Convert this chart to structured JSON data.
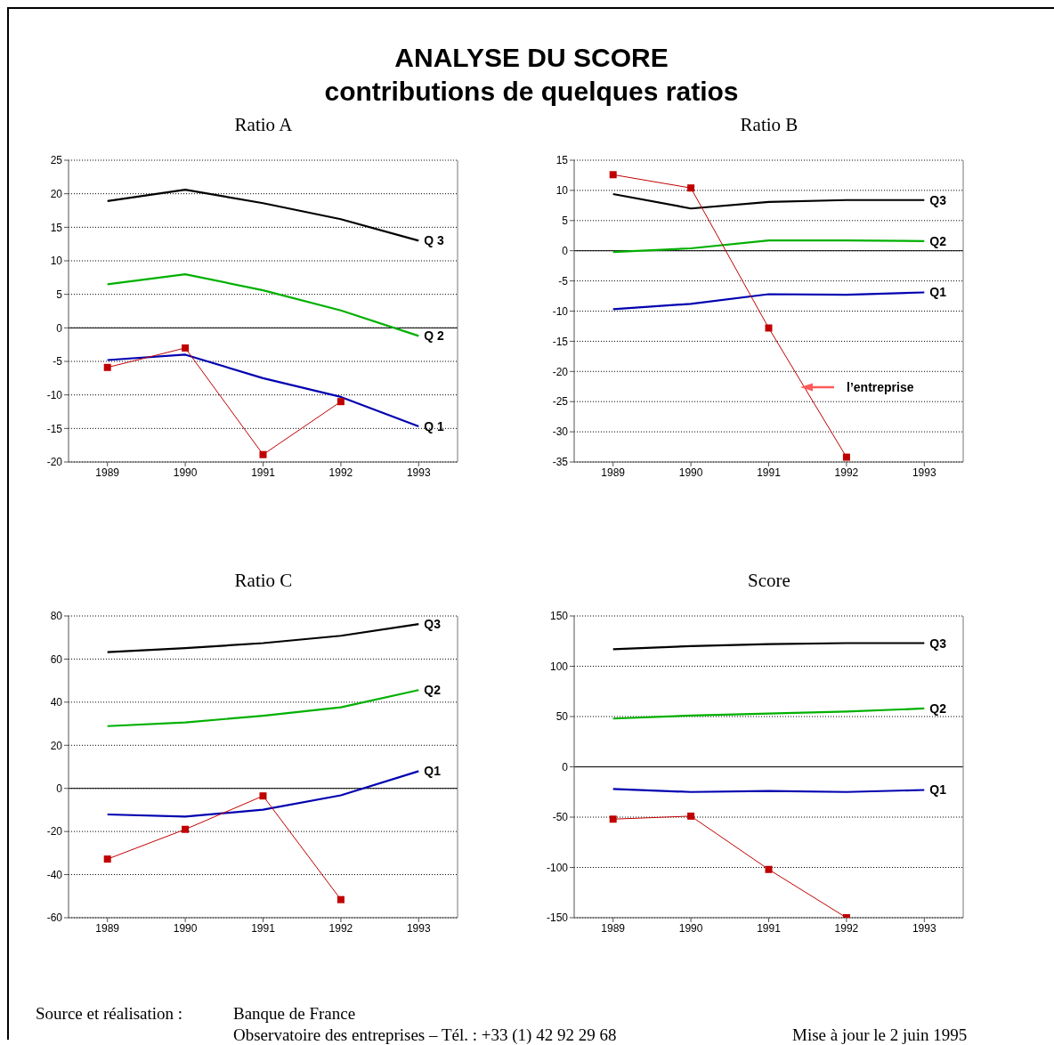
{
  "chart_data": [
    {
      "type": "other",
      "title": "ANALYSE DU SCORE",
      "subtitle": "contributions de quelques ratios"
    },
    {
      "type": "line",
      "title": "Ratio A",
      "categories": [
        "1989",
        "1990",
        "1991",
        "1992",
        "1993"
      ],
      "ylim": [
        -20,
        25
      ],
      "yticks": [
        -20,
        -15,
        -10,
        -5,
        0,
        5,
        10,
        15,
        20,
        25
      ],
      "grid": "y",
      "legend": false,
      "line_style": "solid",
      "ref_lines": [
        {
          "axis": "y",
          "value": 0,
          "color": "#000000"
        }
      ],
      "series": [
        {
          "name": "Q 3",
          "color": "#000000",
          "marker": "none",
          "values": [
            18.9,
            20.6,
            18.6,
            16.2,
            13.0
          ]
        },
        {
          "name": "Q 2",
          "color": "#00b000",
          "marker": "none",
          "values": [
            6.5,
            8.0,
            5.6,
            2.6,
            -1.2
          ]
        },
        {
          "name": "Q 1",
          "color": "#0000b0",
          "marker": "none",
          "values": [
            -4.8,
            -4.0,
            -7.5,
            -10.3,
            -14.7
          ]
        },
        {
          "color": "#c00000",
          "marker": "square",
          "values": [
            -5.9,
            -3.0,
            -18.9,
            -11.0,
            null
          ]
        }
      ]
    },
    {
      "type": "line",
      "title": "Ratio B",
      "categories": [
        "1989",
        "1990",
        "1991",
        "1992",
        "1993"
      ],
      "ylim": [
        -35,
        15
      ],
      "yticks": [
        -35,
        -30,
        -25,
        -20,
        -15,
        -10,
        -5,
        0,
        5,
        10,
        15
      ],
      "grid": "y",
      "legend": false,
      "line_style": "solid",
      "ref_lines": [
        {
          "axis": "y",
          "value": 0,
          "color": "#000000"
        }
      ],
      "series": [
        {
          "name": "Q3",
          "color": "#000000",
          "marker": "none",
          "values": [
            9.4,
            7.0,
            8.1,
            8.4,
            8.4
          ]
        },
        {
          "name": "Q2",
          "color": "#00b000",
          "marker": "none",
          "values": [
            -0.2,
            0.4,
            1.7,
            1.7,
            1.6
          ]
        },
        {
          "name": "Q1",
          "color": "#0000b0",
          "marker": "none",
          "values": [
            -9.7,
            -8.8,
            -7.2,
            -7.3,
            -6.9
          ]
        },
        {
          "name": "l’entreprise",
          "color": "#c00000",
          "marker": "square",
          "values": [
            12.6,
            10.4,
            -12.8,
            -34.2,
            null
          ]
        }
      ]
    },
    {
      "type": "line",
      "title": "Ratio C",
      "categories": [
        "1989",
        "1990",
        "1991",
        "1992",
        "1993"
      ],
      "ylim": [
        -60,
        80
      ],
      "yticks": [
        -60,
        -40,
        -20,
        0,
        20,
        40,
        60,
        80
      ],
      "grid": "y",
      "legend": false,
      "line_style": "solid",
      "ref_lines": [
        {
          "axis": "y",
          "value": 0,
          "color": "#000000"
        }
      ],
      "series": [
        {
          "name": "Q3",
          "color": "#000000",
          "marker": "none",
          "values": [
            63.2,
            65.1,
            67.4,
            70.8,
            76.2
          ]
        },
        {
          "name": "Q2",
          "color": "#00b000",
          "marker": "none",
          "values": [
            28.9,
            30.6,
            33.7,
            37.6,
            45.6
          ]
        },
        {
          "name": "Q1",
          "color": "#0000b0",
          "marker": "none",
          "values": [
            -12.1,
            -13.1,
            -9.9,
            -3.2,
            8.0
          ]
        },
        {
          "color": "#c00000",
          "marker": "square",
          "values": [
            -32.8,
            -19.0,
            -3.5,
            -51.6,
            null
          ]
        }
      ]
    },
    {
      "type": "line",
      "title": "Score",
      "categories": [
        "1989",
        "1990",
        "1991",
        "1992",
        "1993"
      ],
      "ylim": [
        -150,
        150
      ],
      "yticks": [
        -150,
        -100,
        -50,
        0,
        50,
        100,
        150
      ],
      "grid": "y",
      "legend": false,
      "line_style": "solid",
      "ref_lines": [
        {
          "axis": "y",
          "value": 0,
          "color": "#000000"
        }
      ],
      "series": [
        {
          "name": "Q3",
          "color": "#000000",
          "marker": "none",
          "values": [
            117,
            120,
            122,
            123,
            123
          ]
        },
        {
          "name": "Q2",
          "color": "#00b000",
          "marker": "none",
          "values": [
            48,
            51,
            53,
            55,
            58
          ]
        },
        {
          "name": "Q1",
          "color": "#0000b0",
          "marker": "none",
          "values": [
            -22,
            -25,
            -24,
            -25,
            -23
          ]
        },
        {
          "color": "#c00000",
          "marker": "square",
          "values": [
            -52,
            -49,
            -102,
            -150,
            null
          ]
        }
      ]
    },
    {
      "type": "other",
      "annotations": [
        "Source et réalisation :",
        "Banque de France",
        "Observatoire des entreprises – Tél. : +33 (1) 42 92 29 68",
        "Mise à jour le 2 juin 1995"
      ]
    }
  ]
}
